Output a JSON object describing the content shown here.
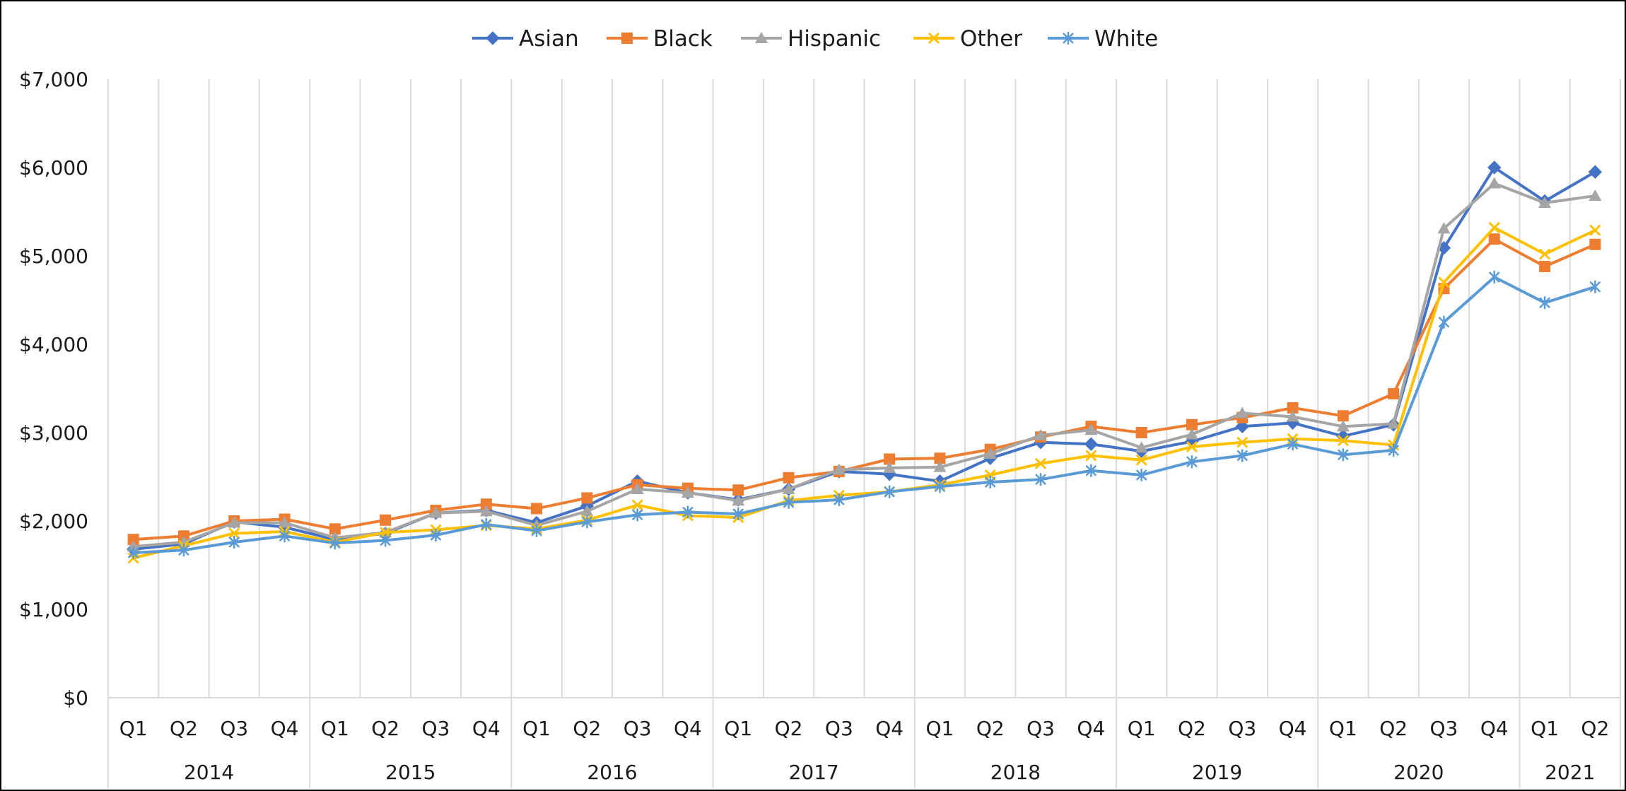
{
  "chart_data": {
    "type": "line",
    "title": "",
    "xlabel": "",
    "ylabel": "",
    "ylim": [
      0,
      7000
    ],
    "y_ticks": [
      0,
      1000,
      2000,
      3000,
      4000,
      5000,
      6000,
      7000
    ],
    "y_tick_labels": [
      "$0",
      "$1,000",
      "$2,000",
      "$3,000",
      "$4,000",
      "$5,000",
      "$6,000",
      "$7,000"
    ],
    "grid": "vertical",
    "legend_position": "top-center",
    "categories": [
      "Q1",
      "Q2",
      "Q3",
      "Q4",
      "Q1",
      "Q2",
      "Q3",
      "Q4",
      "Q1",
      "Q2",
      "Q3",
      "Q4",
      "Q1",
      "Q2",
      "Q3",
      "Q4",
      "Q1",
      "Q2",
      "Q3",
      "Q4",
      "Q1",
      "Q2",
      "Q3",
      "Q4",
      "Q1",
      "Q2",
      "Q3",
      "Q4",
      "Q1",
      "Q2"
    ],
    "groups": [
      {
        "label": "2014",
        "count": 4
      },
      {
        "label": "2015",
        "count": 4
      },
      {
        "label": "2016",
        "count": 4
      },
      {
        "label": "2017",
        "count": 4
      },
      {
        "label": "2018",
        "count": 4
      },
      {
        "label": "2019",
        "count": 4
      },
      {
        "label": "2020",
        "count": 4
      },
      {
        "label": "2021",
        "count": 2
      }
    ],
    "series": [
      {
        "name": "Asian",
        "color": "#4472C4",
        "marker": "diamond",
        "values": [
          1680,
          1740,
          1990,
          1930,
          1790,
          1860,
          2090,
          2120,
          1980,
          2170,
          2450,
          2320,
          2240,
          2360,
          2560,
          2530,
          2450,
          2710,
          2890,
          2870,
          2790,
          2900,
          3070,
          3110,
          2960,
          3090,
          5090,
          6000,
          5620,
          5950
        ]
      },
      {
        "name": "Black",
        "color": "#ED7D31",
        "marker": "square",
        "values": [
          1790,
          1830,
          2000,
          2020,
          1910,
          2010,
          2120,
          2190,
          2140,
          2260,
          2410,
          2370,
          2350,
          2490,
          2560,
          2700,
          2710,
          2810,
          2950,
          3070,
          3000,
          3090,
          3170,
          3280,
          3190,
          3440,
          4630,
          5190,
          4880,
          5130
        ]
      },
      {
        "name": "Hispanic",
        "color": "#A5A5A5",
        "marker": "triangle",
        "values": [
          1710,
          1760,
          1980,
          1980,
          1810,
          1870,
          2090,
          2110,
          1950,
          2110,
          2360,
          2320,
          2230,
          2360,
          2580,
          2600,
          2610,
          2760,
          2970,
          3030,
          2830,
          2980,
          3220,
          3180,
          3070,
          3100,
          5310,
          5820,
          5600,
          5680
        ]
      },
      {
        "name": "Other",
        "color": "#FFC000",
        "marker": "x",
        "values": [
          1580,
          1720,
          1860,
          1880,
          1760,
          1870,
          1900,
          1950,
          1910,
          2010,
          2180,
          2060,
          2040,
          2230,
          2290,
          2330,
          2410,
          2520,
          2650,
          2740,
          2690,
          2840,
          2890,
          2930,
          2910,
          2860,
          4700,
          5320,
          5020,
          5290
        ]
      },
      {
        "name": "White",
        "color": "#5B9BD5",
        "marker": "asterisk",
        "values": [
          1640,
          1670,
          1760,
          1830,
          1750,
          1780,
          1840,
          1960,
          1890,
          1990,
          2070,
          2100,
          2080,
          2210,
          2240,
          2330,
          2390,
          2440,
          2470,
          2570,
          2520,
          2670,
          2740,
          2870,
          2750,
          2800,
          4250,
          4760,
          4470,
          4650
        ]
      }
    ]
  }
}
